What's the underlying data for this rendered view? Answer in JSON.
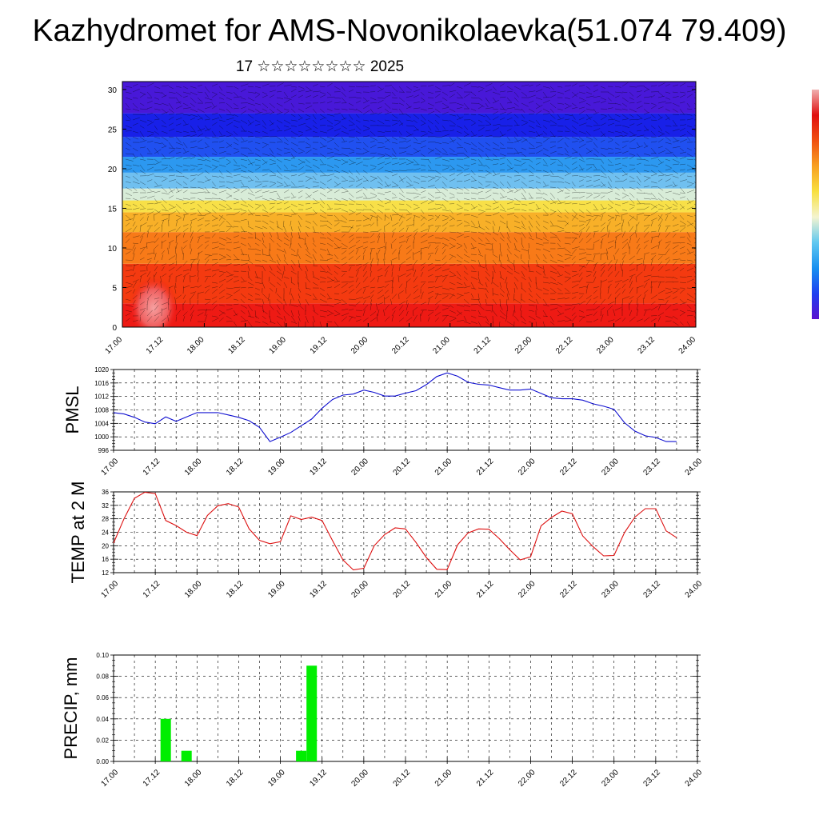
{
  "header": {
    "title": "Kazhydromet for AMS-Novonikolaevka(51.074 79.409)",
    "subtitle": "17 ☆☆☆☆☆☆☆☆ 2025"
  },
  "colors": {
    "pmsl_line": "#1010d0",
    "temp_line": "#dd1010",
    "precip_bar": "#00ee00",
    "colorbar": [
      "#5a10d0",
      "#2040f0",
      "#1890f0",
      "#60c8f0",
      "#f4f4d0",
      "#f8e040",
      "#f8a020",
      "#f05010",
      "#e01010",
      "#f0b0b0"
    ]
  },
  "chart_data": [
    {
      "type": "heatmap",
      "title": "",
      "ylabel": "",
      "y_ticks": [
        0,
        5,
        10,
        15,
        20,
        25,
        30
      ],
      "ylim": [
        0,
        31
      ],
      "x_ticks": [
        "17.00",
        "17.12",
        "18.00",
        "18.12",
        "19.00",
        "19.12",
        "20.00",
        "20.12",
        "21.00",
        "21.12",
        "22.00",
        "22.12",
        "23.00",
        "23.12",
        "24.00"
      ],
      "field_bands": [
        {
          "from": 0,
          "to": 3,
          "color": "#ee1a14"
        },
        {
          "from": 3,
          "to": 8,
          "color": "#f43a10"
        },
        {
          "from": 8,
          "to": 12,
          "color": "#f87a18"
        },
        {
          "from": 12,
          "to": 14.5,
          "color": "#f8b028"
        },
        {
          "from": 14.5,
          "to": 16,
          "color": "#f8e048"
        },
        {
          "from": 16,
          "to": 17.5,
          "color": "#d8ecd8"
        },
        {
          "from": 17.5,
          "to": 19.5,
          "color": "#70c0f0"
        },
        {
          "from": 19.5,
          "to": 21.5,
          "color": "#2c98f0"
        },
        {
          "from": 21.5,
          "to": 24,
          "color": "#2050f0"
        },
        {
          "from": 24,
          "to": 27,
          "color": "#1820e8"
        },
        {
          "from": 27,
          "to": 31,
          "color": "#4818d8"
        }
      ],
      "overlay": "wind barbs and streamlines",
      "grid": true
    },
    {
      "type": "line",
      "ylabel": "PMSL",
      "ylim": [
        996,
        1020
      ],
      "y_ticks": [
        996,
        1000,
        1004,
        1008,
        1012,
        1016,
        1020
      ],
      "x_ticks": [
        "17.00",
        "17.12",
        "18.00",
        "18.12",
        "19.00",
        "19.12",
        "20.00",
        "20.12",
        "21.00",
        "21.12",
        "22.00",
        "22.12",
        "23.00",
        "23.12",
        "24.00"
      ],
      "grid": true,
      "x_hours": [
        0,
        3,
        6,
        9,
        12,
        15,
        18,
        21,
        24,
        27,
        30,
        33,
        36,
        39,
        42,
        45,
        48,
        51,
        54,
        57,
        60,
        63,
        66,
        69,
        72,
        75,
        78,
        81,
        84,
        87,
        90,
        93,
        96,
        99,
        102,
        105,
        108,
        111,
        114,
        117,
        120,
        123,
        126,
        129,
        132,
        135,
        138,
        141,
        144,
        147,
        150,
        153,
        156,
        159,
        162
      ],
      "series": [
        {
          "values": [
            1007.2,
            1006.8,
            1005.8,
            1004.4,
            1003.9,
            1005.9,
            1004.6,
            1005.9,
            1007.2,
            1007.2,
            1007.2,
            1006.5,
            1005.8,
            1004.8,
            1002.8,
            998.6,
            999.9,
            1001.3,
            1003.3,
            1005.3,
            1008.5,
            1011.1,
            1012.4,
            1012.7,
            1013.9,
            1013.2,
            1012.1,
            1012.1,
            1013.0,
            1013.7,
            1015.5,
            1017.9,
            1019.0,
            1018.0,
            1016.2,
            1015.6,
            1015.4,
            1014.6,
            1013.9,
            1013.9,
            1014.2,
            1012.9,
            1011.6,
            1011.3,
            1011.3,
            1010.9,
            1009.8,
            1009.1,
            1008.2,
            1004.2,
            1001.7,
            1000.3,
            999.8,
            998.6,
            998.6
          ]
        }
      ]
    },
    {
      "type": "line",
      "ylabel": "TEMP at 2 M",
      "ylim": [
        12,
        36
      ],
      "y_ticks": [
        12,
        16,
        20,
        24,
        28,
        32,
        36
      ],
      "x_ticks": [
        "17.00",
        "17.12",
        "18.00",
        "18.12",
        "19.00",
        "19.12",
        "20.00",
        "20.12",
        "21.00",
        "21.12",
        "22.00",
        "22.12",
        "23.00",
        "23.12",
        "24.00"
      ],
      "grid": true,
      "x_hours": [
        0,
        3,
        6,
        9,
        12,
        15,
        18,
        21,
        24,
        27,
        30,
        33,
        36,
        39,
        42,
        45,
        48,
        51,
        54,
        57,
        60,
        63,
        66,
        69,
        72,
        75,
        78,
        81,
        84,
        87,
        90,
        93,
        96,
        99,
        102,
        105,
        108,
        111,
        114,
        117,
        120,
        123,
        126,
        129,
        132,
        135,
        138,
        141,
        144,
        147,
        150,
        153,
        156,
        159,
        162
      ],
      "series": [
        {
          "values": [
            20.8,
            28.0,
            34.1,
            35.9,
            35.5,
            27.5,
            26.0,
            24.0,
            23.0,
            29.0,
            31.9,
            32.5,
            31.5,
            25.0,
            21.6,
            20.6,
            21.2,
            28.9,
            27.8,
            28.5,
            27.5,
            21.5,
            15.8,
            12.8,
            13.3,
            20.0,
            23.3,
            25.3,
            25.0,
            21.0,
            16.5,
            13.0,
            12.9,
            20.3,
            23.8,
            25.0,
            24.9,
            22.1,
            18.8,
            15.8,
            16.7,
            25.9,
            28.4,
            30.3,
            29.5,
            22.9,
            19.7,
            17.0,
            17.1,
            23.9,
            28.5,
            31.0,
            31.0,
            24.4,
            22.4
          ]
        }
      ]
    },
    {
      "type": "bar",
      "ylabel": "PRECIP, mm",
      "ylim": [
        0,
        0.1
      ],
      "y_ticks": [
        "0.00",
        "0.02",
        "0.04",
        "0.06",
        "0.08",
        "0.10"
      ],
      "x_ticks": [
        "17.00",
        "17.12",
        "18.00",
        "18.12",
        "19.00",
        "19.12",
        "20.00",
        "20.12",
        "21.00",
        "21.12",
        "22.00",
        "22.12",
        "23.00",
        "23.12",
        "24.00"
      ],
      "grid": true,
      "bar_hours": [
        15,
        21,
        54,
        57
      ],
      "values": [
        0.04,
        0.01,
        0.01,
        0.09
      ]
    }
  ]
}
